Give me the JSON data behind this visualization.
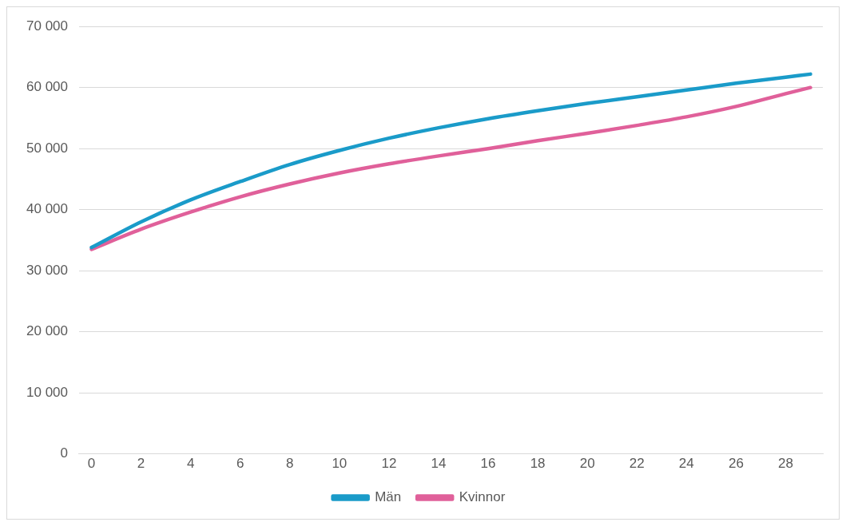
{
  "chart_data": {
    "type": "line",
    "x": [
      0,
      2,
      4,
      6,
      8,
      10,
      12,
      14,
      16,
      18,
      20,
      22,
      24,
      26,
      28,
      29
    ],
    "series": [
      {
        "name": "Män",
        "color": "#1a9bc9",
        "values": [
          33800,
          38000,
          41600,
          44600,
          47400,
          49700,
          51700,
          53400,
          54900,
          56200,
          57400,
          58500,
          59600,
          60700,
          61700,
          62200
        ]
      },
      {
        "name": "Kvinnor",
        "color": "#e0609a",
        "values": [
          33500,
          36800,
          39600,
          42100,
          44200,
          46000,
          47500,
          48800,
          50000,
          51300,
          52500,
          53800,
          55200,
          56900,
          59000,
          60000
        ]
      }
    ],
    "xlim": [
      -0.5,
      29.5
    ],
    "xticks": [
      0,
      2,
      4,
      6,
      8,
      10,
      12,
      14,
      16,
      18,
      20,
      22,
      24,
      26,
      28
    ],
    "ylim": [
      0,
      70000
    ],
    "yticks": [
      0,
      {
        "value": 10000,
        "label": "10 000"
      },
      {
        "value": 20000,
        "label": "20 000"
      },
      {
        "value": 30000,
        "label": "30 000"
      },
      {
        "value": 40000,
        "label": "40 000"
      },
      {
        "value": 50000,
        "label": "50 000"
      },
      {
        "value": 60000,
        "label": "60 000"
      },
      {
        "value": 70000,
        "label": "70 000"
      }
    ],
    "grid": "y",
    "legend": "bottom",
    "marker": "none",
    "line_style": "solid"
  }
}
